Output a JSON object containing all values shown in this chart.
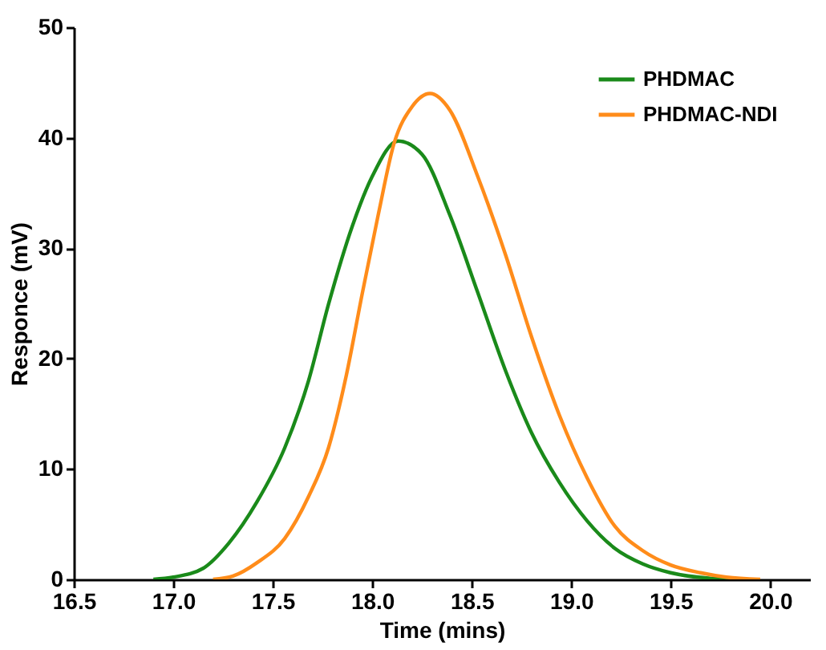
{
  "chart_data": {
    "type": "line",
    "xlabel": "Time (mins)",
    "ylabel": "Responce (mV)",
    "xlim": [
      16.5,
      20.2
    ],
    "ylim": [
      0,
      50
    ],
    "xticks": [
      {
        "value": 16.5,
        "label": "16.5"
      },
      {
        "value": 17,
        "label": "17.0"
      },
      {
        "value": 17.5,
        "label": "17.5"
      },
      {
        "value": 18,
        "label": "18.0"
      },
      {
        "value": 18.5,
        "label": "18.5"
      },
      {
        "value": 19,
        "label": "19.0"
      },
      {
        "value": 19.5,
        "label": "19.5"
      },
      {
        "value": 20,
        "label": "20.0"
      }
    ],
    "yticks": [
      0,
      10,
      20,
      30,
      40,
      50
    ],
    "legend": "top right",
    "grid": false,
    "marker": "none",
    "line_style": "solid",
    "series": [
      {
        "name": "PHDMAC",
        "color": "#1a8a1a",
        "x": [
          16.9,
          17.0,
          17.15,
          17.28,
          17.42,
          17.56,
          17.68,
          17.78,
          17.9,
          18.0,
          18.13,
          18.25,
          18.39,
          18.53,
          18.67,
          18.8,
          18.94,
          19.08,
          19.22,
          19.36,
          19.5,
          19.7,
          19.85
        ],
        "values": [
          0,
          0.2,
          1.0,
          3.3,
          7,
          11.9,
          18,
          24.9,
          32,
          36.5,
          39.7,
          38.5,
          33,
          26,
          18.9,
          13.3,
          8.8,
          5.3,
          2.8,
          1.4,
          0.6,
          0.1,
          0
        ]
      },
      {
        "name": "PHDMAC-NDI",
        "color": "#ff8c1a",
        "x": [
          17.2,
          17.3,
          17.42,
          17.56,
          17.68,
          17.78,
          17.87,
          17.95,
          18.03,
          18.11,
          18.2,
          18.29,
          18.39,
          18.53,
          18.67,
          18.8,
          18.94,
          19.08,
          19.22,
          19.36,
          19.5,
          19.65,
          19.78,
          19.95
        ],
        "values": [
          0,
          0.3,
          1.5,
          3.7,
          7.5,
          11.9,
          18.5,
          25.9,
          33,
          39.5,
          42.8,
          44.0,
          42.5,
          36.5,
          29.4,
          22,
          14.9,
          9.2,
          4.8,
          2.6,
          1.3,
          0.6,
          0.2,
          0
        ]
      }
    ]
  }
}
